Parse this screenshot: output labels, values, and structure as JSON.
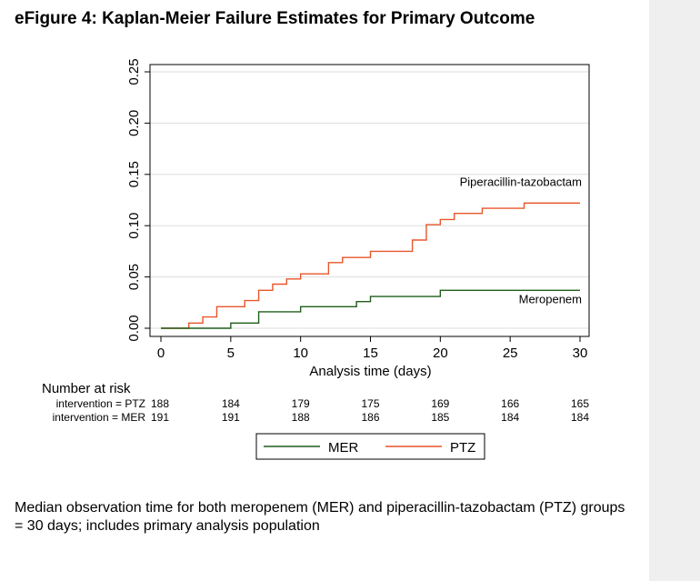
{
  "title": "eFigure 4: Kaplan-Meier Failure Estimates for Primary Outcome",
  "footnote": "Median observation time for both meropenem (MER) and piperacillin-tazobactam (PTZ) groups = 30 days; includes primary analysis population",
  "colors": {
    "ptz": "#e8562a",
    "mer": "#1f5d1a",
    "frame": "#000000",
    "grid": "#dddddd",
    "panel": "#efefef"
  },
  "chart_data": {
    "type": "line",
    "subtype": "kaplan-meier-step",
    "xlabel": "Analysis time (days)",
    "ylabel": "",
    "xlim": [
      0,
      30
    ],
    "ylim": [
      0,
      0.25
    ],
    "x_ticks": [
      0,
      5,
      10,
      15,
      20,
      25,
      30
    ],
    "x_tick_labels": [
      "0",
      "5",
      "10",
      "15",
      "20",
      "25",
      "30"
    ],
    "y_ticks": [
      0,
      0.05,
      0.1,
      0.15,
      0.2,
      0.25
    ],
    "y_tick_labels": [
      "0.00",
      "0.05",
      "0.10",
      "0.15",
      "0.20",
      "0.25"
    ],
    "grid": true,
    "series": [
      {
        "name": "Piperacillin-tazobactam",
        "key": "ptz",
        "color": "#e8562a",
        "x": [
          0,
          2,
          3,
          4,
          6,
          7,
          8,
          9,
          10,
          12,
          13,
          15,
          18,
          19,
          20,
          21,
          23,
          26,
          30
        ],
        "y": [
          0,
          0.005,
          0.011,
          0.021,
          0.027,
          0.037,
          0.043,
          0.048,
          0.053,
          0.064,
          0.069,
          0.075,
          0.086,
          0.101,
          0.106,
          0.112,
          0.117,
          0.122,
          0.122
        ]
      },
      {
        "name": "Meropenem",
        "key": "mer",
        "color": "#1f5d1a",
        "x": [
          0,
          5,
          7,
          10,
          14,
          15,
          20,
          30
        ],
        "y": [
          0,
          0.005,
          0.016,
          0.021,
          0.026,
          0.031,
          0.037,
          0.037
        ]
      }
    ],
    "annotations": [
      {
        "text": "Piperacillin-tazobactam",
        "x": 30,
        "y": 0.135
      },
      {
        "text": "Meropenem",
        "x": 30,
        "y": 0.021
      }
    ],
    "risk_table": {
      "heading": "Number at risk",
      "times": [
        0,
        5,
        10,
        15,
        20,
        25,
        30
      ],
      "rows": [
        {
          "label": "intervention = PTZ",
          "values": [
            "188",
            "184",
            "179",
            "175",
            "169",
            "166",
            "165"
          ]
        },
        {
          "label": "intervention = MER",
          "values": [
            "191",
            "191",
            "188",
            "186",
            "185",
            "184",
            "184"
          ]
        }
      ]
    },
    "legend": {
      "position": "bottom",
      "entries": [
        {
          "label": "MER",
          "color": "#1f5d1a"
        },
        {
          "label": "PTZ",
          "color": "#e8562a"
        }
      ]
    }
  }
}
